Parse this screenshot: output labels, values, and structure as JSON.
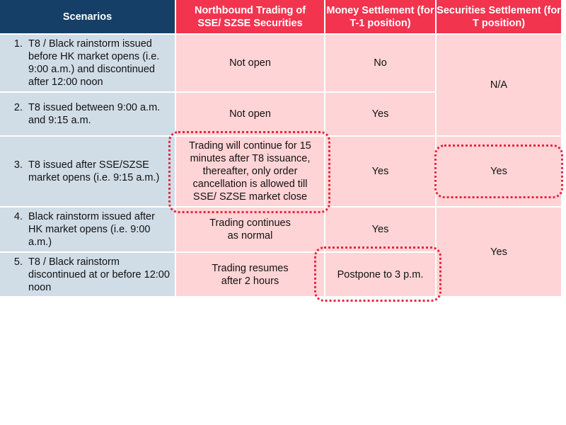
{
  "headers": [
    "Scenarios",
    "Northbound Trading of SSE/ SZSE Securities",
    "Money Settlement (for T-1 position)",
    "Securities Settlement (for T position)"
  ],
  "rows": [
    {
      "num": "1.",
      "scenario": "T8 / Black rainstorm issued before HK market opens (i.e. 9:00 a.m.) and discontinued after 12:00 noon",
      "trading": "Not open",
      "money": "No"
    },
    {
      "num": "2.",
      "scenario": "T8 issued between 9:00 a.m. and 9:15 a.m.",
      "trading": "Not open",
      "money": "Yes"
    },
    {
      "num": "3.",
      "scenario": "T8 issued after SSE/SZSE market opens (i.e. 9:15 a.m.)",
      "trading": "Trading will continue for 15 minutes after T8 issuance, thereafter, only order cancellation is allowed till SSE/ SZSE market close",
      "money": "Yes",
      "securities": "Yes"
    },
    {
      "num": "4.",
      "scenario": "Black rainstorm issued after HK market opens (i.e. 9:00 a.m.)",
      "trading": "Trading continues as normal",
      "money": "Yes"
    },
    {
      "num": "5.",
      "scenario": "T8 / Black rainstorm discontinued at or before 12:00 noon",
      "trading": "Trading resumes after 2 hours",
      "money": "Postpone to 3 p.m."
    }
  ],
  "securities_rows_1_2": "N/A",
  "securities_rows_4_5": "Yes",
  "colors": {
    "header_blue": "#153f67",
    "header_red": "#f2344f",
    "scenario_bg": "#d0dde7",
    "cell_bg": "#ffd4d6",
    "highlight": "#e8243f"
  }
}
